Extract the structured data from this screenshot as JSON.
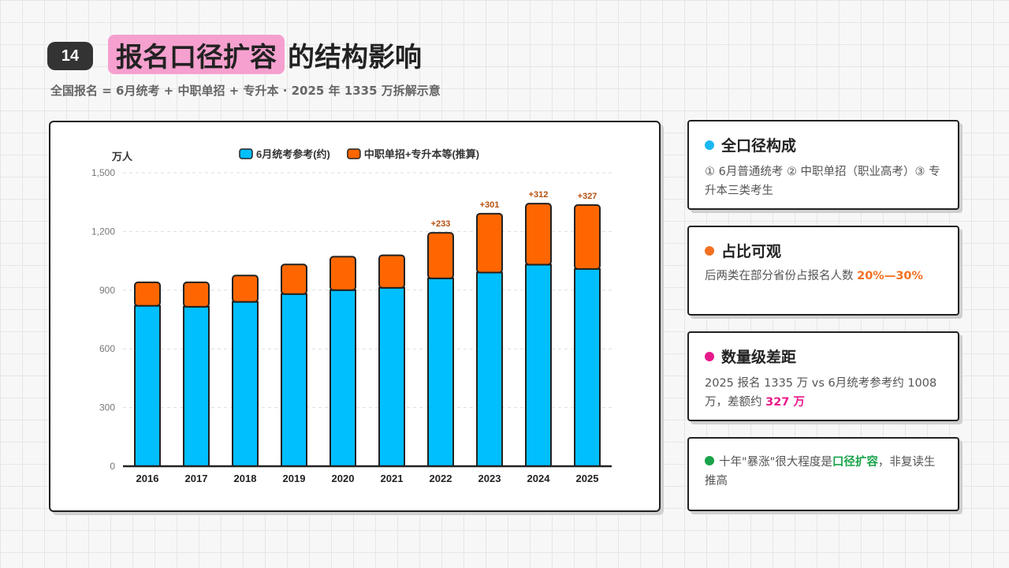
{
  "page": {
    "number": "14",
    "title_highlight": "报名口径扩容",
    "title_rest": "的结构影响",
    "subtitle": "全国报名 = 6月统考 + 中职单招 + 专升本 · 2025 年 1335 万拆解示意"
  },
  "cards": [
    {
      "heading": "全口径构成",
      "dot_color": "#1ab8f0",
      "body": "① 6月普通统考 ② 中职单招（职业高考）③ 专升本三类考生"
    },
    {
      "heading": "占比可观",
      "dot_color": "#f37021",
      "body_prefix": "后两类在部分省份占报名人数 ",
      "body_highlight": "20%—30%"
    },
    {
      "heading": "数量级差距",
      "dot_color": "#e8198b",
      "body_prefix": "2025 报名 1335 万 vs 6月统考参考约 1008 万，差额约 ",
      "body_highlight": "327 万"
    },
    {
      "dot_color": "#19a34a",
      "body_prefix": "十年\"暴涨\"很大程度是",
      "body_highlight": "口径扩容",
      "body_suffix": "，非复读生推高"
    }
  ],
  "chart_data": {
    "type": "bar",
    "stacked": true,
    "ylabel": "万人",
    "ylim": [
      0,
      1500
    ],
    "yticks": [
      0,
      300,
      600,
      900,
      1200,
      1500
    ],
    "ytick_labels": [
      "0",
      "300",
      "600",
      "900",
      "1,200",
      "1,500"
    ],
    "categories": [
      "2016",
      "2017",
      "2018",
      "2019",
      "2020",
      "2021",
      "2022",
      "2023",
      "2024",
      "2025"
    ],
    "series": [
      {
        "name": "6月统考参考(约)",
        "color": "#00bfff",
        "values": [
          820,
          815,
          840,
          880,
          900,
          912,
          960,
          990,
          1030,
          1008
        ]
      },
      {
        "name": "中职单招+专升本等(推算)",
        "color": "#ff6600",
        "values": [
          120,
          125,
          135,
          151,
          171,
          166,
          233,
          301,
          312,
          327
        ]
      }
    ],
    "annotations": [
      {
        "category": "2022",
        "text": "+233"
      },
      {
        "category": "2023",
        "text": "+301"
      },
      {
        "category": "2024",
        "text": "+312"
      },
      {
        "category": "2025",
        "text": "+327"
      }
    ],
    "grid": true,
    "legend_position": "top-center"
  }
}
